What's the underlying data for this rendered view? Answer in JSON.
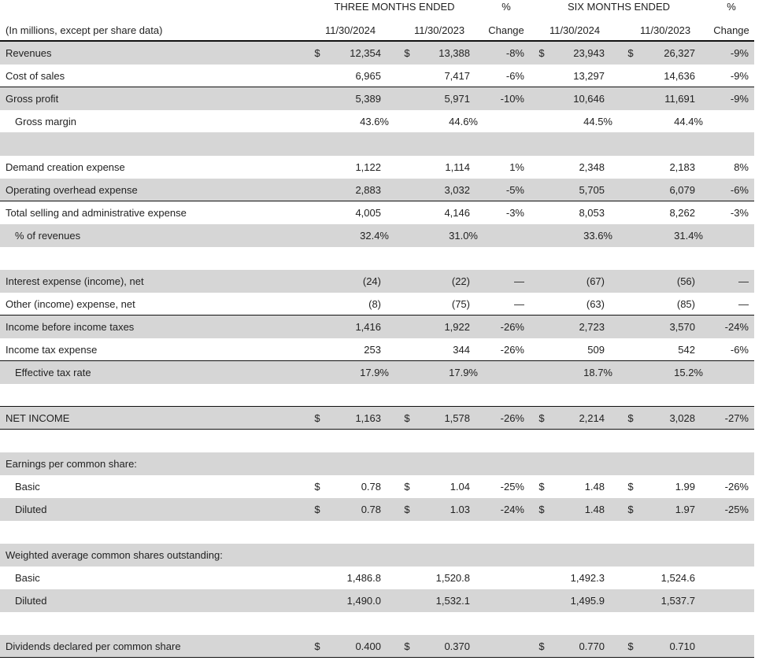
{
  "header": {
    "three_months": "THREE MONTHS ENDED",
    "pct1": "%",
    "six_months": "SIX MONTHS ENDED",
    "pct2": "%",
    "caption": "(In millions, except per share data)",
    "d1": "11/30/2024",
    "d2": "11/30/2023",
    "change1": "Change",
    "d3": "11/30/2024",
    "d4": "11/30/2023",
    "change2": "Change"
  },
  "rows": [
    {
      "label": "Revenues",
      "shade": true,
      "c": [
        "$",
        "12,354",
        "$",
        "13,388",
        "-8%",
        "$",
        "23,943",
        "$",
        "26,327",
        "-9%"
      ]
    },
    {
      "label": "Cost of sales",
      "bb": true,
      "c": [
        "",
        "6,965",
        "",
        "7,417",
        "-6%",
        "",
        "13,297",
        "",
        "14,636",
        "-9%"
      ]
    },
    {
      "label": "Gross profit",
      "shade": true,
      "c": [
        "",
        "5,389",
        "",
        "5,971",
        "-10%",
        "",
        "10,646",
        "",
        "11,691",
        "-9%"
      ]
    },
    {
      "label": "Gross margin",
      "indent": true,
      "pct": true,
      "lb": true,
      "c": [
        "",
        "43.6%",
        "",
        "44.6%",
        "",
        "",
        "44.5%",
        "",
        "44.4%",
        ""
      ]
    },
    {
      "label": "",
      "shade": true,
      "c": [
        "",
        "",
        "",
        "",
        "",
        "",
        "",
        "",
        "",
        ""
      ]
    },
    {
      "label": "Demand creation expense",
      "c": [
        "",
        "1,122",
        "",
        "1,114",
        "1%",
        "",
        "2,348",
        "",
        "2,183",
        "8%"
      ]
    },
    {
      "label": "Operating overhead expense",
      "shade": true,
      "bb": true,
      "c": [
        "",
        "2,883",
        "",
        "3,032",
        "-5%",
        "",
        "5,705",
        "",
        "6,079",
        "-6%"
      ]
    },
    {
      "label": "Total selling and administrative expense",
      "c": [
        "",
        "4,005",
        "",
        "4,146",
        "-3%",
        "",
        "8,053",
        "",
        "8,262",
        "-3%"
      ]
    },
    {
      "label": "% of revenues",
      "indent": true,
      "pct": true,
      "shade": true,
      "c": [
        "",
        "32.4%",
        "",
        "31.0%",
        "",
        "",
        "33.6%",
        "",
        "31.4%",
        ""
      ]
    },
    {
      "label": "",
      "c": [
        "",
        "",
        "",
        "",
        "",
        "",
        "",
        "",
        "",
        ""
      ]
    },
    {
      "label": "Interest expense (income), net",
      "shade": true,
      "c": [
        "",
        "(24)",
        "",
        "(22)",
        "—",
        "",
        "(67)",
        "",
        "(56)",
        "—"
      ]
    },
    {
      "label": "Other (income) expense, net",
      "bb": true,
      "c": [
        "",
        "(8)",
        "",
        "(75)",
        "—",
        "",
        "(63)",
        "",
        "(85)",
        "—"
      ]
    },
    {
      "label": "Income before income taxes",
      "shade": true,
      "c": [
        "",
        "1,416",
        "",
        "1,922",
        "-26%",
        "",
        "2,723",
        "",
        "3,570",
        "-24%"
      ]
    },
    {
      "label": "Income tax expense",
      "bb": true,
      "c": [
        "",
        "253",
        "",
        "344",
        "-26%",
        "",
        "509",
        "",
        "542",
        "-6%"
      ]
    },
    {
      "label": "Effective tax rate",
      "indent": true,
      "pct": true,
      "shade": true,
      "c": [
        "",
        "17.9%",
        "",
        "17.9%",
        "",
        "",
        "18.7%",
        "",
        "15.2%",
        ""
      ]
    },
    {
      "label": "",
      "bb": true,
      "c": [
        "",
        "",
        "",
        "",
        "",
        "",
        "",
        "",
        "",
        ""
      ]
    },
    {
      "label": "NET INCOME",
      "shade": true,
      "bb": true,
      "c": [
        "$",
        "1,163",
        "$",
        "1,578",
        "-26%",
        "$",
        "2,214",
        "$",
        "3,028",
        "-27%"
      ]
    },
    {
      "label": "",
      "c": [
        "",
        "",
        "",
        "",
        "",
        "",
        "",
        "",
        "",
        ""
      ]
    },
    {
      "label": "Earnings per common share:",
      "shade": true,
      "c": [
        "",
        "",
        "",
        "",
        "",
        "",
        "",
        "",
        "",
        ""
      ]
    },
    {
      "label": "Basic",
      "indent": true,
      "c": [
        "$",
        "0.78",
        "$",
        "1.04",
        "-25%",
        "$",
        "1.48",
        "$",
        "1.99",
        "-26%"
      ]
    },
    {
      "label": "Diluted",
      "indent": true,
      "shade": true,
      "c": [
        "$",
        "0.78",
        "$",
        "1.03",
        "-24%",
        "$",
        "1.48",
        "$",
        "1.97",
        "-25%"
      ]
    },
    {
      "label": "",
      "c": [
        "",
        "",
        "",
        "",
        "",
        "",
        "",
        "",
        "",
        ""
      ]
    },
    {
      "label": "Weighted average common shares outstanding:",
      "shade": true,
      "c": [
        "",
        "",
        "",
        "",
        "",
        "",
        "",
        "",
        "",
        ""
      ]
    },
    {
      "label": "Basic",
      "indent": true,
      "c": [
        "",
        "1,486.8",
        "",
        "1,520.8",
        "",
        "",
        "1,492.3",
        "",
        "1,524.6",
        ""
      ]
    },
    {
      "label": "Diluted",
      "indent": true,
      "shade": true,
      "c": [
        "",
        "1,490.0",
        "",
        "1,532.1",
        "",
        "",
        "1,495.9",
        "",
        "1,537.7",
        ""
      ]
    },
    {
      "label": "",
      "c": [
        "",
        "",
        "",
        "",
        "",
        "",
        "",
        "",
        "",
        ""
      ]
    },
    {
      "label": "Dividends declared per common share",
      "shade": true,
      "bb": true,
      "c": [
        "$",
        "0.400",
        "$",
        "0.370",
        "",
        "$",
        "0.770",
        "$",
        "0.710",
        ""
      ]
    }
  ]
}
